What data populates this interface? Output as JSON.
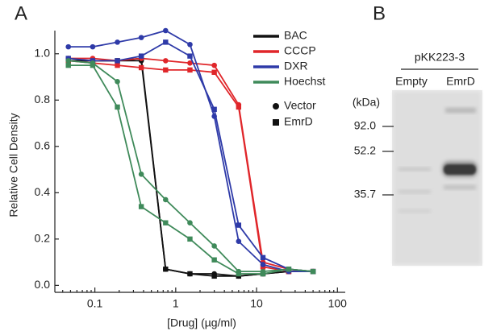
{
  "chart_data": {
    "type": "line",
    "panel_label": "A",
    "x_label": "[Drug] (µg/ml)",
    "y_label": "Relative Cell Density",
    "log_x": true,
    "x": [
      0.047,
      0.094,
      0.19,
      0.375,
      0.75,
      1.5,
      3,
      6,
      12,
      25,
      50
    ],
    "xlim": [
      0.032,
      125
    ],
    "xticks": [
      0.1,
      1,
      10,
      100
    ],
    "ylim": [
      -0.03,
      1.1
    ],
    "yticks": [
      {
        "value": 0,
        "label": "0.0"
      },
      0.2,
      0.4,
      0.6,
      0.8,
      {
        "value": 1,
        "label": "1.0"
      }
    ],
    "constructs": [
      {
        "name": "Vector",
        "marker": "circle"
      },
      {
        "name": "EmrD",
        "marker": "square"
      }
    ],
    "drugs": [
      {
        "name": "BAC",
        "color": "#111111",
        "series": [
          {
            "values": [
              0.97,
              0.97,
              0.97,
              0.97,
              0.07,
              0.05,
              0.05,
              0.04,
              0.05,
              0.06,
              0.06
            ]
          },
          {
            "values": [
              0.97,
              0.97,
              0.97,
              0.98,
              0.07,
              0.05,
              0.04,
              0.04,
              0.05,
              0.06,
              0.06
            ]
          }
        ]
      },
      {
        "name": "CCCP",
        "color": "#e0262a",
        "series": [
          {
            "values": [
              0.98,
              0.98,
              0.97,
              0.98,
              0.97,
              0.96,
              0.95,
              0.78,
              0.1,
              0.07,
              0.06
            ]
          },
          {
            "values": [
              0.97,
              0.96,
              0.95,
              0.94,
              0.93,
              0.93,
              0.92,
              0.77,
              0.08,
              0.06,
              0.06
            ]
          }
        ]
      },
      {
        "name": "DXR",
        "color": "#2e3aa8",
        "series": [
          {
            "values": [
              1.03,
              1.03,
              1.05,
              1.07,
              1.1,
              1.04,
              0.73,
              0.19,
              0.09,
              0.06,
              0.06
            ]
          },
          {
            "values": [
              0.98,
              0.97,
              0.97,
              0.99,
              1.05,
              0.99,
              0.76,
              0.26,
              0.12,
              0.07,
              0.06
            ]
          }
        ]
      },
      {
        "name": "Hoechst",
        "color": "#3f8a5a",
        "series": [
          {
            "values": [
              0.97,
              0.96,
              0.88,
              0.48,
              0.37,
              0.27,
              0.17,
              0.06,
              0.06,
              0.07,
              0.06
            ]
          },
          {
            "values": [
              0.95,
              0.95,
              0.77,
              0.34,
              0.27,
              0.2,
              0.11,
              0.05,
              0.05,
              0.07,
              0.06
            ]
          }
        ]
      }
    ]
  },
  "gel": {
    "panel_label": "B",
    "plasmid": "pKK223-3",
    "lanes": [
      "Empty",
      "EmrD"
    ],
    "unit": "(kDa)",
    "markers": [
      "92.0",
      "52.2",
      "35.7"
    ]
  }
}
